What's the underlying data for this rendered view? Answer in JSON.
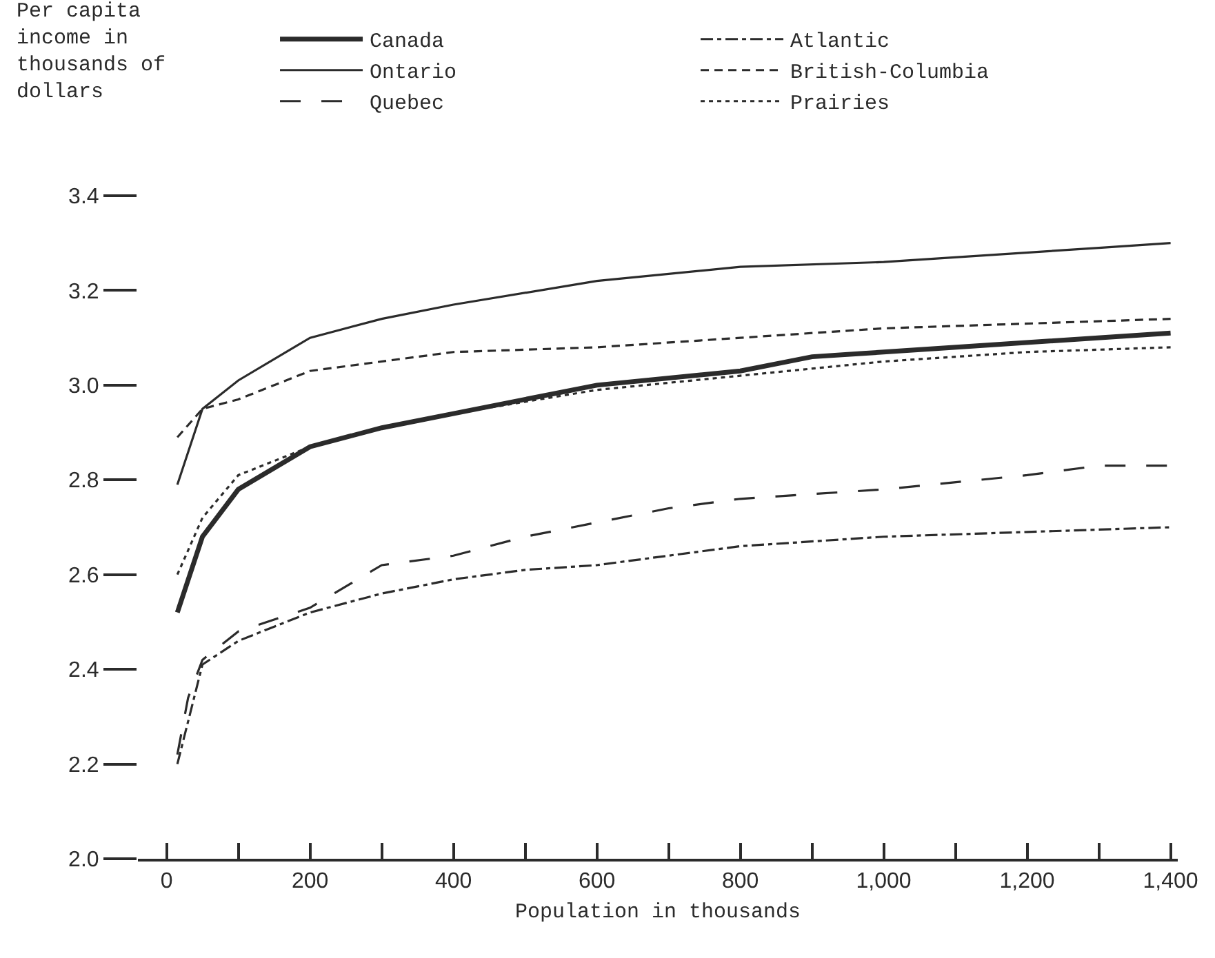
{
  "chart_data": {
    "type": "line",
    "xlabel": "Population in thousands",
    "ylabel": "Per capita income in thousands of dollars",
    "xlim": [
      -40,
      1410
    ],
    "ylim": [
      2.0,
      3.4
    ],
    "xticks": [
      0,
      {
        "value": 100,
        "label": null
      },
      200,
      {
        "value": 300,
        "label": null
      },
      400,
      {
        "value": 500,
        "label": null
      },
      600,
      {
        "value": 700,
        "label": null
      },
      800,
      {
        "value": 900,
        "label": null
      },
      {
        "value": 1000,
        "label": "1,000"
      },
      {
        "value": 1100,
        "label": null
      },
      {
        "value": 1200,
        "label": "1,200"
      },
      {
        "value": 1300,
        "label": null
      },
      {
        "value": 1400,
        "label": "1,400"
      }
    ],
    "yticks": [
      {
        "value": 2.0,
        "label": "2.0"
      },
      2.2,
      2.4,
      2.6,
      2.8,
      {
        "value": 3.0,
        "label": "3.0"
      },
      3.2,
      3.4
    ],
    "legend": "top left",
    "marker": "none",
    "series": [
      {
        "name": "Canada",
        "color": "#2b2b2b",
        "line_style": "solid",
        "x": [
          15,
          50,
          100,
          200,
          300,
          400,
          600,
          800,
          900,
          1400
        ],
        "values": [
          2.52,
          2.68,
          2.78,
          2.87,
          2.91,
          2.94,
          3.0,
          3.03,
          3.06,
          3.11
        ]
      },
      {
        "name": "Ontario",
        "color": "#2b2b2b",
        "line_style": "solid",
        "x": [
          15,
          50,
          100,
          200,
          300,
          400,
          600,
          800,
          1000,
          1300,
          1400
        ],
        "values": [
          2.79,
          2.95,
          3.01,
          3.1,
          3.14,
          3.17,
          3.22,
          3.25,
          3.26,
          3.29,
          3.3
        ]
      },
      {
        "name": "Quebec",
        "color": "#2b2b2b",
        "line_style": "longdash",
        "x": [
          15,
          30,
          50,
          100,
          200,
          300,
          400,
          500,
          600,
          700,
          800,
          1000,
          1200,
          1300,
          1400
        ],
        "values": [
          2.22,
          2.34,
          2.42,
          2.48,
          2.53,
          2.62,
          2.64,
          2.68,
          2.71,
          2.74,
          2.76,
          2.78,
          2.81,
          2.83,
          2.83
        ]
      },
      {
        "name": "Atlantic",
        "color": "#2b2b2b",
        "line_style": "dashdot",
        "x": [
          15,
          50,
          100,
          200,
          300,
          400,
          500,
          600,
          800,
          1000,
          1200,
          1400
        ],
        "values": [
          2.2,
          2.41,
          2.46,
          2.52,
          2.56,
          2.59,
          2.61,
          2.62,
          2.66,
          2.68,
          2.69,
          2.7
        ]
      },
      {
        "name": "British-Columbia",
        "color": "#2b2b2b",
        "line_style": "dashed",
        "x": [
          15,
          50,
          100,
          200,
          400,
          600,
          800,
          1000,
          1400
        ],
        "values": [
          2.89,
          2.95,
          2.97,
          3.03,
          3.07,
          3.08,
          3.1,
          3.12,
          3.14
        ]
      },
      {
        "name": "Prairies",
        "color": "#2b2b2b",
        "line_style": "dotted",
        "x": [
          15,
          50,
          100,
          200,
          300,
          400,
          600,
          800,
          1000,
          1200,
          1400
        ],
        "values": [
          2.6,
          2.72,
          2.81,
          2.87,
          2.91,
          2.94,
          2.99,
          3.02,
          3.05,
          3.07,
          3.08
        ]
      }
    ]
  }
}
